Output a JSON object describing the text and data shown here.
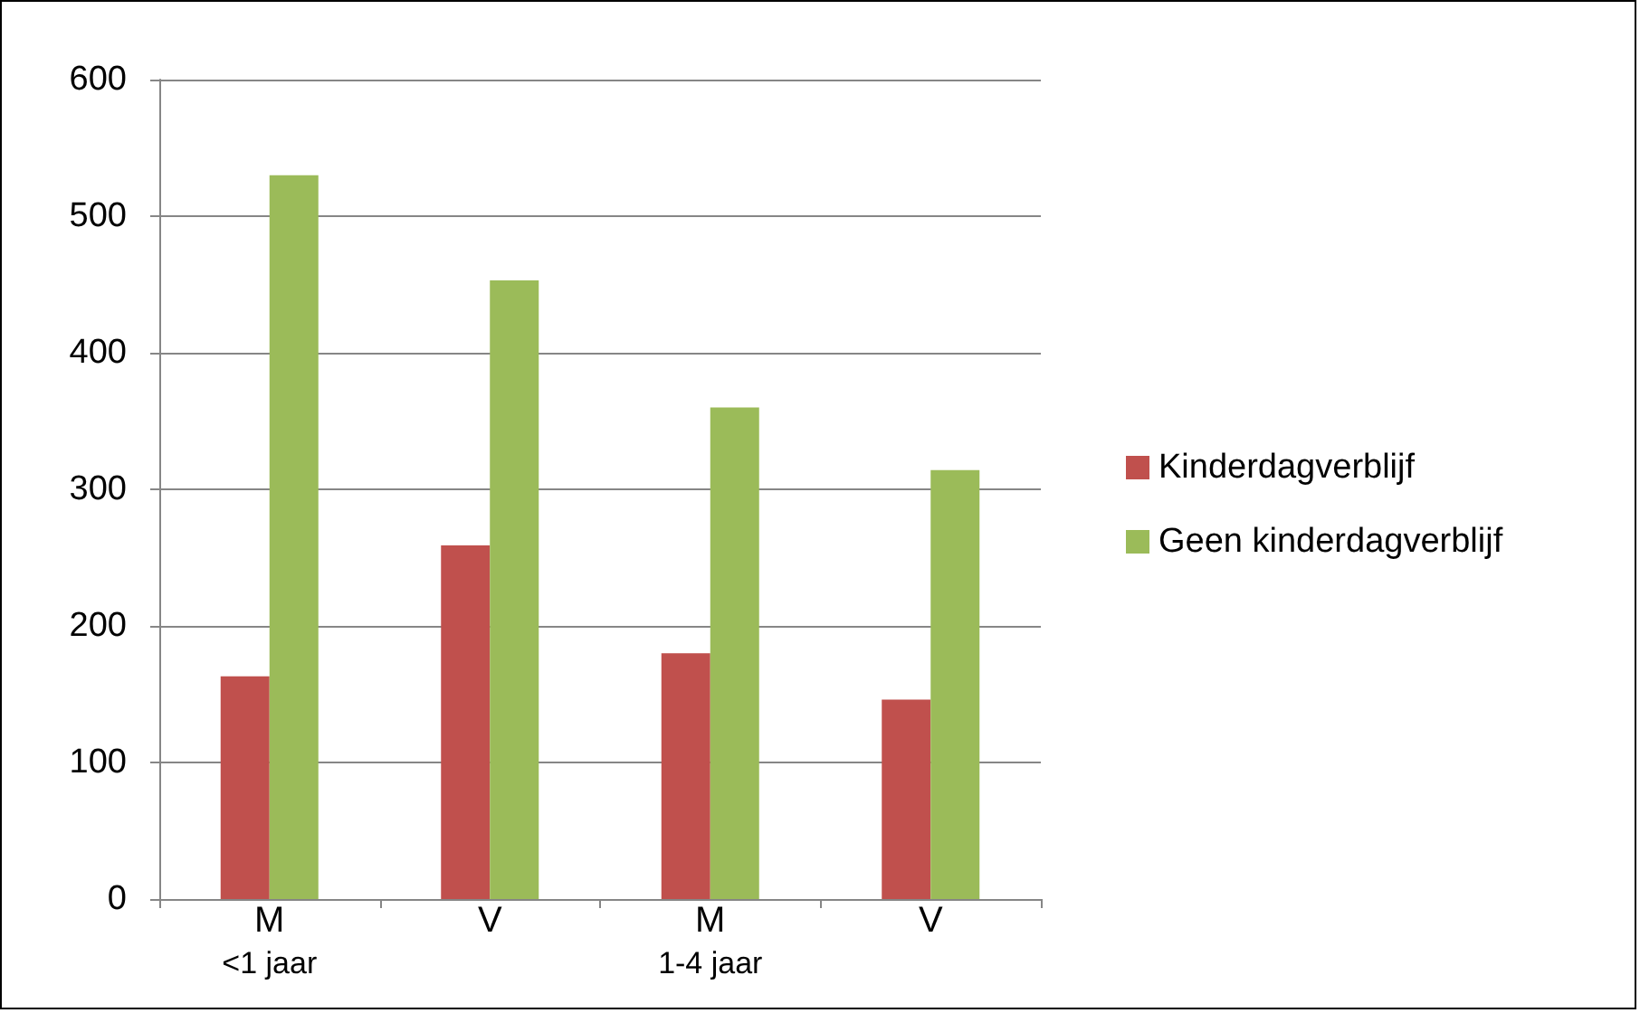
{
  "chart_data": {
    "type": "bar",
    "categories": [
      "M",
      "V",
      "M",
      "V"
    ],
    "series": [
      {
        "name": "Kinderdagverblijf",
        "color": "#c0504d",
        "values": [
          163,
          259,
          180,
          146
        ]
      },
      {
        "name": "Geen kinderdagverblijf",
        "color": "#9bbb59",
        "values": [
          530,
          453,
          360,
          314
        ]
      }
    ],
    "ylim": [
      0,
      600
    ],
    "yticks": [
      0,
      100,
      200,
      300,
      400,
      500,
      600
    ],
    "grid": "y",
    "legend": "right",
    "annotations": [
      "<1 jaar",
      "1-4 jaar"
    ]
  }
}
